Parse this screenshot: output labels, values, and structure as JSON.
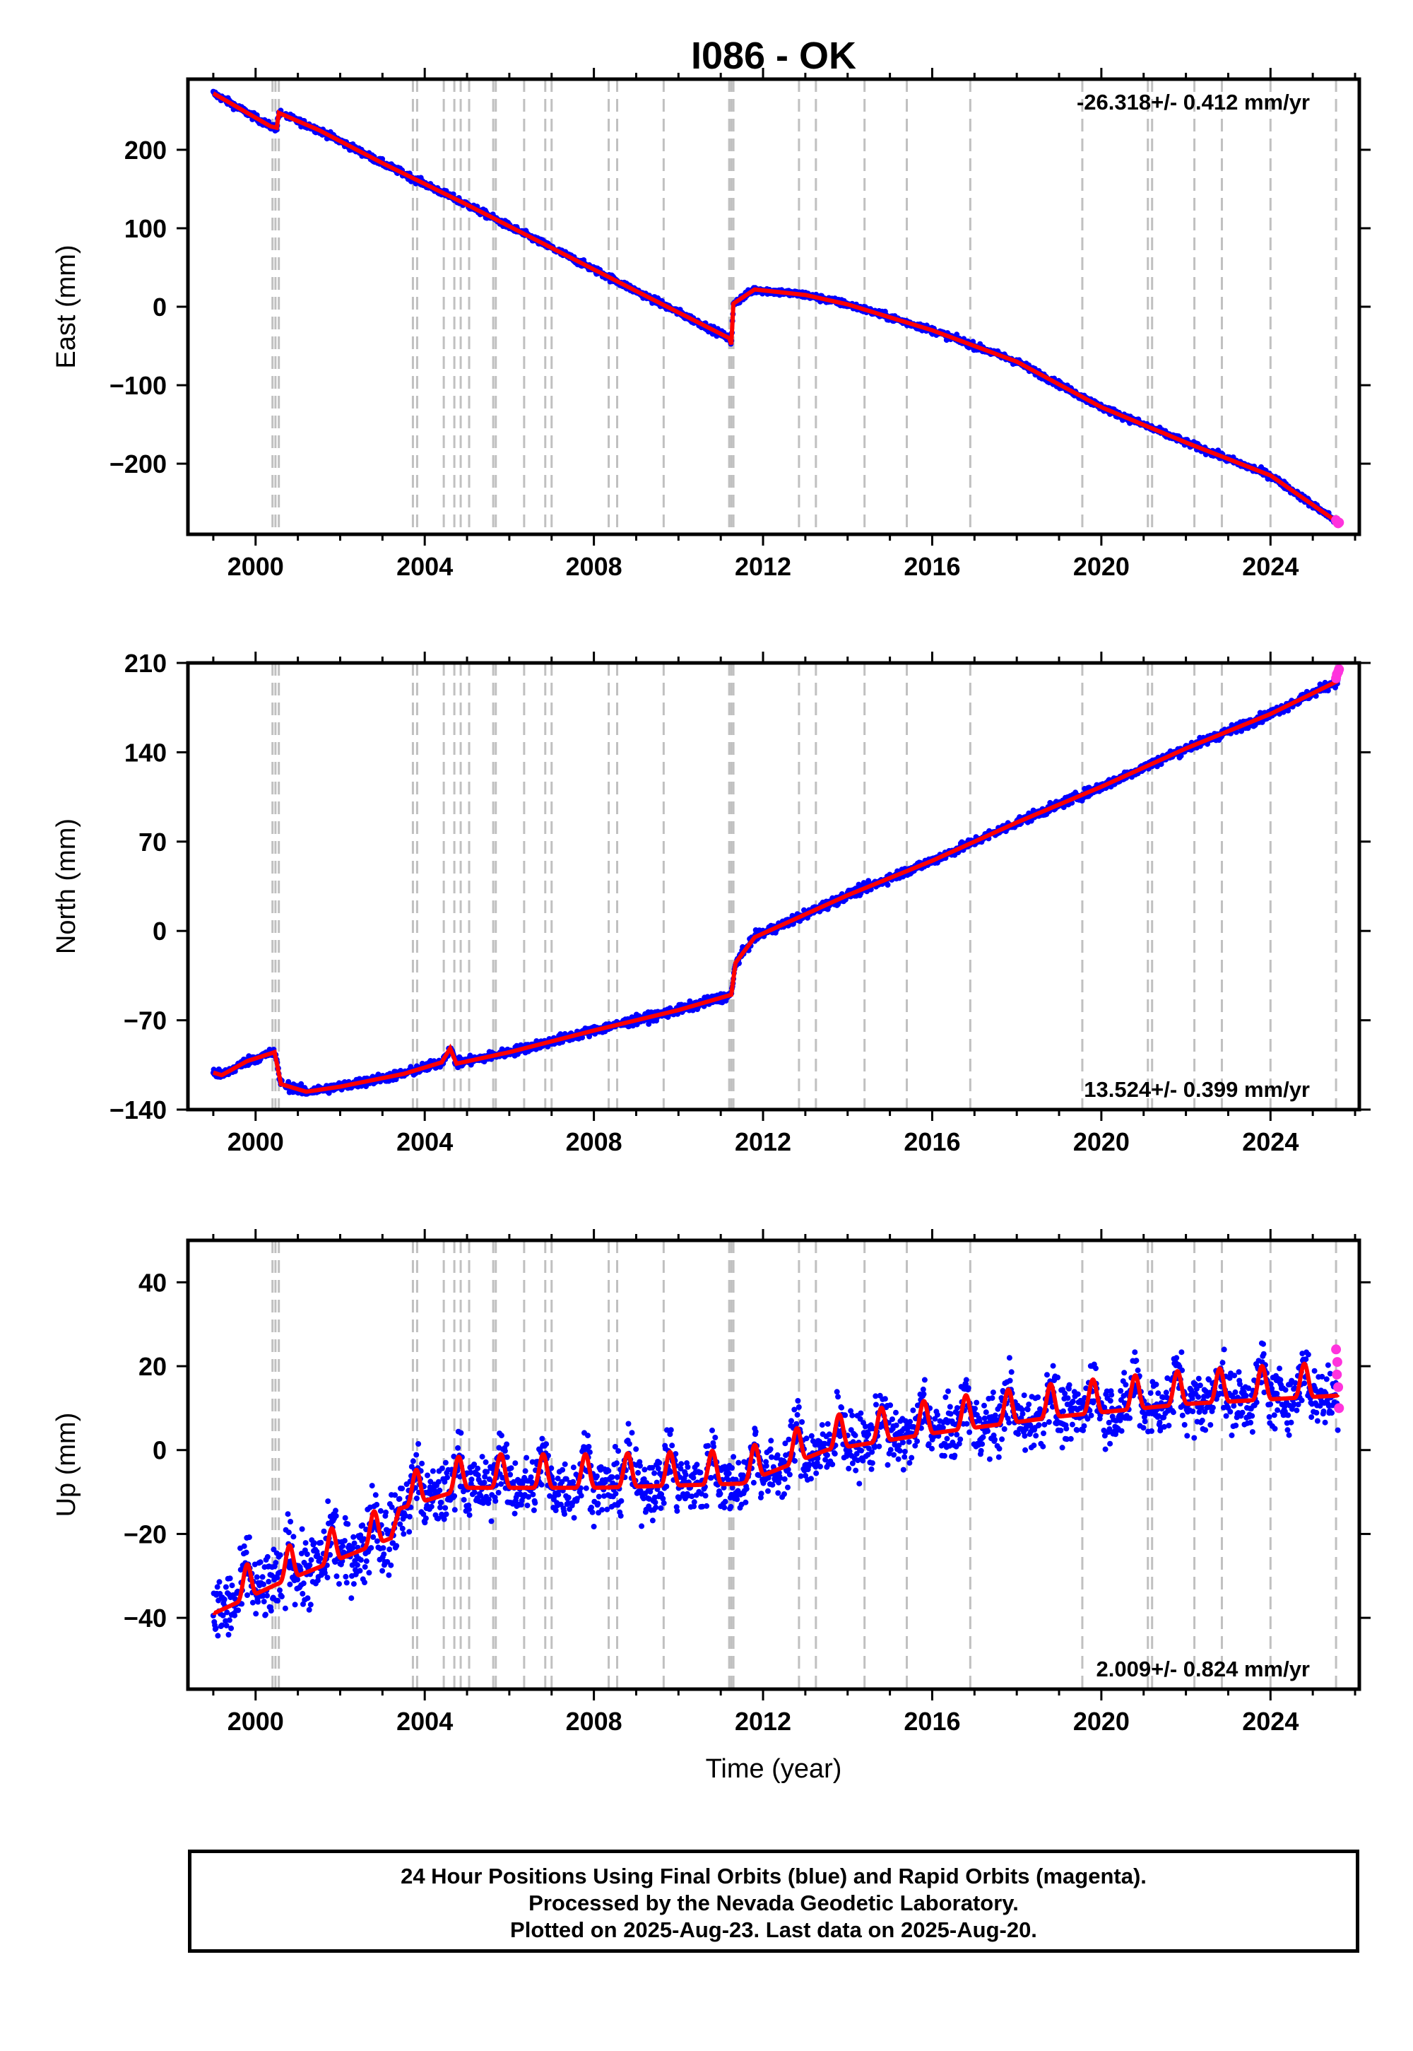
{
  "title": "I086 - OK",
  "x_axis_label": "Time (year)",
  "colors": {
    "final_orbits": "#0000ff",
    "rapid_orbits": "#ff33dd",
    "model_fit": "#ff0000",
    "event_lines": "#c0c0c0"
  },
  "footer": {
    "line1": "24 Hour Positions Using Final Orbits (blue) and Rapid Orbits (magenta).",
    "line2": "Processed by the Nevada Geodetic Laboratory.",
    "line3": "Plotted on 2025-Aug-23. Last data on 2025-Aug-20."
  },
  "chart_data": [
    {
      "type": "scatter",
      "component": "east",
      "ylabel": "East (mm)",
      "rate_label": "-26.318+/- 0.412 mm/yr",
      "rate_label_position": "top-right",
      "xlim": [
        1998.4,
        2026.1
      ],
      "ylim": [
        -290,
        290
      ],
      "x_ticks": [
        2000,
        2004,
        2008,
        2012,
        2016,
        2020,
        2024
      ],
      "y_ticks": [
        200,
        100,
        0,
        -100,
        -200
      ],
      "y_tick_labels": [
        "200",
        "100",
        "0",
        "−100",
        "−200"
      ],
      "noise_mm": 3,
      "trend_knots": [
        [
          1999.0,
          272
        ],
        [
          2000.35,
          230
        ],
        [
          2000.5,
          228
        ],
        [
          2000.55,
          247
        ],
        [
          2001.5,
          225
        ],
        [
          2003.0,
          183
        ],
        [
          2005.0,
          130
        ],
        [
          2007.0,
          75
        ],
        [
          2009.0,
          20
        ],
        [
          2011.2,
          -40
        ],
        [
          2011.25,
          -48
        ],
        [
          2011.3,
          4
        ],
        [
          2011.8,
          22
        ],
        [
          2013.0,
          15
        ],
        [
          2014.0,
          3
        ],
        [
          2016.0,
          -30
        ],
        [
          2018.0,
          -70
        ],
        [
          2020.0,
          -128
        ],
        [
          2022.0,
          -173
        ],
        [
          2024.0,
          -215
        ],
        [
          2025.6,
          -275
        ]
      ],
      "rapid_points": [
        [
          2025.55,
          -272
        ],
        [
          2025.57,
          -274
        ],
        [
          2025.6,
          -276
        ],
        [
          2025.62,
          -275
        ]
      ]
    },
    {
      "type": "scatter",
      "component": "north",
      "ylabel": "North (mm)",
      "rate_label": "13.524+/- 0.399 mm/yr",
      "rate_label_position": "bottom-right",
      "xlim": [
        1998.4,
        2026.1
      ],
      "ylim": [
        -140,
        210
      ],
      "x_ticks": [
        2000,
        2004,
        2008,
        2012,
        2016,
        2020,
        2024
      ],
      "y_ticks": [
        210,
        140,
        70,
        0,
        -70,
        -140
      ],
      "y_tick_labels": [
        "210",
        "140",
        "70",
        "0",
        "−70",
        "−140"
      ],
      "noise_mm": 2.5,
      "trend_knots": [
        [
          1999.0,
          -111
        ],
        [
          1999.2,
          -113
        ],
        [
          1999.8,
          -102
        ],
        [
          2000.45,
          -95
        ],
        [
          2000.6,
          -120
        ],
        [
          2001.2,
          -126
        ],
        [
          2002.0,
          -122
        ],
        [
          2003.5,
          -112
        ],
        [
          2004.4,
          -103
        ],
        [
          2004.6,
          -92
        ],
        [
          2004.75,
          -104
        ],
        [
          2006.0,
          -95
        ],
        [
          2008.0,
          -78
        ],
        [
          2010.0,
          -62
        ],
        [
          2011.25,
          -50
        ],
        [
          2011.35,
          -25
        ],
        [
          2011.8,
          -5
        ],
        [
          2013.0,
          13
        ],
        [
          2014.0,
          28
        ],
        [
          2016.0,
          55
        ],
        [
          2018.0,
          85
        ],
        [
          2020.0,
          113
        ],
        [
          2022.0,
          143
        ],
        [
          2024.0,
          170
        ],
        [
          2025.6,
          196
        ]
      ],
      "rapid_points": [
        [
          2025.55,
          198
        ],
        [
          2025.57,
          201
        ],
        [
          2025.6,
          203
        ],
        [
          2025.62,
          205
        ]
      ]
    },
    {
      "type": "scatter",
      "component": "up",
      "ylabel": "Up (mm)",
      "rate_label": "2.009+/- 0.824 mm/yr",
      "rate_label_position": "bottom-right",
      "xlim": [
        1998.4,
        2026.1
      ],
      "ylim": [
        -57,
        50
      ],
      "x_ticks": [
        2000,
        2004,
        2008,
        2012,
        2016,
        2020,
        2024
      ],
      "y_ticks": [
        40,
        20,
        0,
        -20,
        -40
      ],
      "y_tick_labels": [
        "40",
        "20",
        "0",
        "−20",
        "−40"
      ],
      "noise_mm": 5,
      "trend_knots": [
        [
          1999.0,
          -37
        ],
        [
          2000.5,
          -30
        ],
        [
          2003.2,
          -19
        ],
        [
          2003.4,
          -12
        ],
        [
          2005.0,
          -7
        ],
        [
          2008.0,
          -7
        ],
        [
          2011.5,
          -6
        ],
        [
          2013.5,
          2
        ],
        [
          2016.0,
          6
        ],
        [
          2019.0,
          10
        ],
        [
          2022.0,
          13
        ],
        [
          2025.6,
          15
        ]
      ],
      "seasonal_amplitude_mm": 5,
      "seasonal_phase": 0.55,
      "rapid_points": [
        [
          2025.55,
          24
        ],
        [
          2025.57,
          18
        ],
        [
          2025.6,
          15
        ],
        [
          2025.62,
          10
        ],
        [
          2025.58,
          21
        ]
      ]
    }
  ],
  "event_lines": [
    2000.4,
    2000.47,
    2000.55,
    2003.72,
    2003.82,
    2004.45,
    2004.7,
    2004.85,
    2005.05,
    2005.62,
    2005.68,
    2006.35,
    2006.85,
    2007.0,
    2008.35,
    2008.55,
    2009.65,
    2011.2,
    2011.25,
    2011.3,
    2012.85,
    2013.25,
    2014.4,
    2015.4,
    2016.9,
    2019.55,
    2021.1,
    2021.2,
    2022.2,
    2022.85,
    2024.0,
    2025.55
  ]
}
